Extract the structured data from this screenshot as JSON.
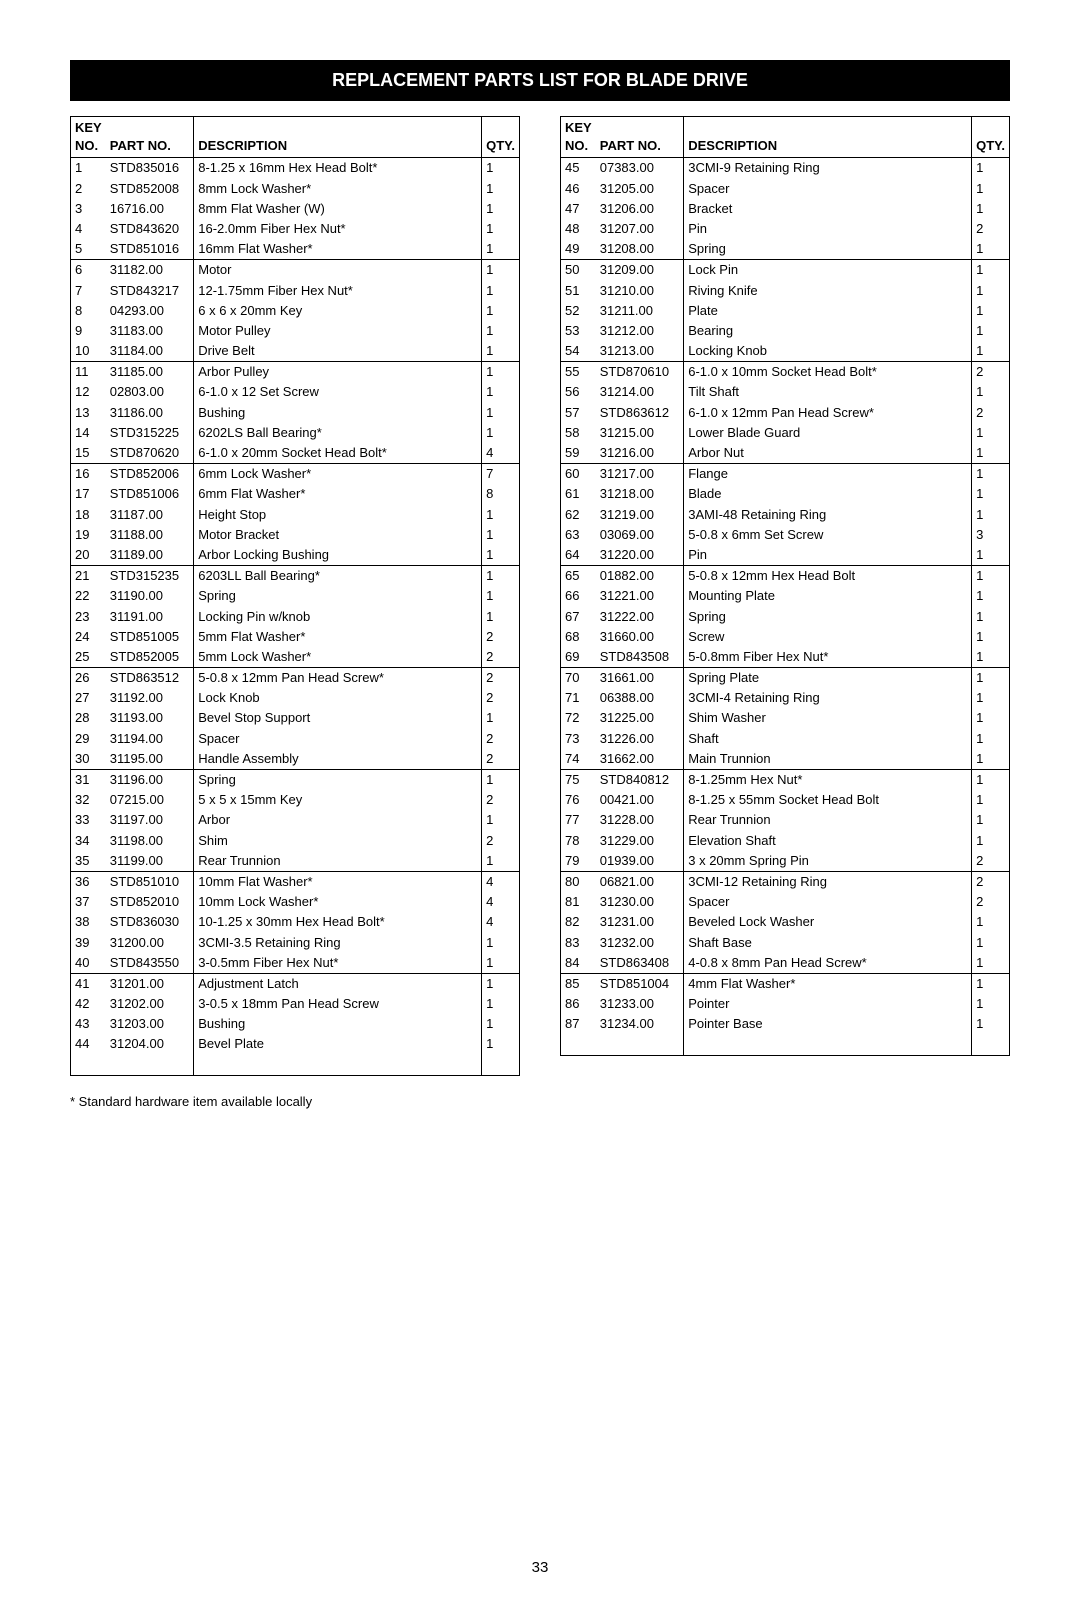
{
  "title": "REPLACEMENT PARTS LIST FOR BLADE DRIVE",
  "headers": {
    "key": "KEY",
    "no": "NO.",
    "part": "PART NO.",
    "desc": "DESCRIPTION",
    "qty": "QTY."
  },
  "footnote": "* Standard hardware item available locally",
  "pageNumber": "33",
  "groupBreakAfter": [
    5,
    10,
    15,
    20,
    25,
    30,
    35,
    40,
    44,
    49,
    54,
    59,
    64,
    69,
    74,
    79,
    84
  ],
  "leftTable": [
    {
      "no": "1",
      "part": "STD835016",
      "desc": "8-1.25 x 16mm Hex Head Bolt*",
      "qty": "1"
    },
    {
      "no": "2",
      "part": "STD852008",
      "desc": "8mm Lock Washer*",
      "qty": "1"
    },
    {
      "no": "3",
      "part": "16716.00",
      "desc": "8mm Flat Washer (W)",
      "qty": "1"
    },
    {
      "no": "4",
      "part": "STD843620",
      "desc": "16-2.0mm Fiber Hex Nut*",
      "qty": "1"
    },
    {
      "no": "5",
      "part": "STD851016",
      "desc": "16mm Flat Washer*",
      "qty": "1"
    },
    {
      "no": "6",
      "part": "31182.00",
      "desc": "Motor",
      "qty": "1"
    },
    {
      "no": "7",
      "part": "STD843217",
      "desc": "12-1.75mm Fiber Hex Nut*",
      "qty": "1"
    },
    {
      "no": "8",
      "part": "04293.00",
      "desc": "6 x 6 x 20mm Key",
      "qty": "1"
    },
    {
      "no": "9",
      "part": "31183.00",
      "desc": "Motor Pulley",
      "qty": "1"
    },
    {
      "no": "10",
      "part": "31184.00",
      "desc": "Drive Belt",
      "qty": "1"
    },
    {
      "no": "11",
      "part": "31185.00",
      "desc": "Arbor Pulley",
      "qty": "1"
    },
    {
      "no": "12",
      "part": "02803.00",
      "desc": "6-1.0 x 12 Set Screw",
      "qty": "1"
    },
    {
      "no": "13",
      "part": "31186.00",
      "desc": "Bushing",
      "qty": "1"
    },
    {
      "no": "14",
      "part": "STD315225",
      "desc": "6202LS Ball Bearing*",
      "qty": "1"
    },
    {
      "no": "15",
      "part": "STD870620",
      "desc": "6-1.0 x 20mm Socket Head Bolt*",
      "qty": "4"
    },
    {
      "no": "16",
      "part": "STD852006",
      "desc": "6mm Lock Washer*",
      "qty": "7"
    },
    {
      "no": "17",
      "part": "STD851006",
      "desc": "6mm Flat Washer*",
      "qty": "8"
    },
    {
      "no": "18",
      "part": "31187.00",
      "desc": "Height Stop",
      "qty": "1"
    },
    {
      "no": "19",
      "part": "31188.00",
      "desc": "Motor Bracket",
      "qty": "1"
    },
    {
      "no": "20",
      "part": "31189.00",
      "desc": "Arbor Locking Bushing",
      "qty": "1"
    },
    {
      "no": "21",
      "part": "STD315235",
      "desc": "6203LL Ball Bearing*",
      "qty": "1"
    },
    {
      "no": "22",
      "part": "31190.00",
      "desc": "Spring",
      "qty": "1"
    },
    {
      "no": "23",
      "part": "31191.00",
      "desc": "Locking Pin w/knob",
      "qty": "1"
    },
    {
      "no": "24",
      "part": "STD851005",
      "desc": "5mm Flat Washer*",
      "qty": "2"
    },
    {
      "no": "25",
      "part": "STD852005",
      "desc": "5mm Lock Washer*",
      "qty": "2"
    },
    {
      "no": "26",
      "part": "STD863512",
      "desc": "5-0.8 x 12mm Pan Head Screw*",
      "qty": "2"
    },
    {
      "no": "27",
      "part": "31192.00",
      "desc": "Lock Knob",
      "qty": "2"
    },
    {
      "no": "28",
      "part": "31193.00",
      "desc": "Bevel Stop Support",
      "qty": "1"
    },
    {
      "no": "29",
      "part": "31194.00",
      "desc": "Spacer",
      "qty": "2"
    },
    {
      "no": "30",
      "part": "31195.00",
      "desc": "Handle Assembly",
      "qty": "2"
    },
    {
      "no": "31",
      "part": "31196.00",
      "desc": "Spring",
      "qty": "1"
    },
    {
      "no": "32",
      "part": "07215.00",
      "desc": "5 x 5 x 15mm Key",
      "qty": "2"
    },
    {
      "no": "33",
      "part": "31197.00",
      "desc": "Arbor",
      "qty": "1"
    },
    {
      "no": "34",
      "part": "31198.00",
      "desc": "Shim",
      "qty": "2"
    },
    {
      "no": "35",
      "part": "31199.00",
      "desc": "Rear Trunnion",
      "qty": "1"
    },
    {
      "no": "36",
      "part": "STD851010",
      "desc": "10mm Flat Washer*",
      "qty": "4"
    },
    {
      "no": "37",
      "part": "STD852010",
      "desc": "10mm Lock Washer*",
      "qty": "4"
    },
    {
      "no": "38",
      "part": "STD836030",
      "desc": "10-1.25 x 30mm Hex Head Bolt*",
      "qty": "4"
    },
    {
      "no": "39",
      "part": "31200.00",
      "desc": "3CMI-3.5 Retaining Ring",
      "qty": "1"
    },
    {
      "no": "40",
      "part": "STD843550",
      "desc": "3-0.5mm Fiber Hex Nut*",
      "qty": "1"
    },
    {
      "no": "41",
      "part": "31201.00",
      "desc": "Adjustment Latch",
      "qty": "1"
    },
    {
      "no": "42",
      "part": "31202.00",
      "desc": "3-0.5 x 18mm Pan Head Screw",
      "qty": "1"
    },
    {
      "no": "43",
      "part": "31203.00",
      "desc": "Bushing",
      "qty": "1"
    },
    {
      "no": "44",
      "part": "31204.00",
      "desc": "Bevel Plate",
      "qty": "1"
    }
  ],
  "rightTable": [
    {
      "no": "45",
      "part": "07383.00",
      "desc": "3CMI-9 Retaining Ring",
      "qty": "1"
    },
    {
      "no": "46",
      "part": "31205.00",
      "desc": "Spacer",
      "qty": "1"
    },
    {
      "no": "47",
      "part": "31206.00",
      "desc": "Bracket",
      "qty": "1"
    },
    {
      "no": "48",
      "part": "31207.00",
      "desc": "Pin",
      "qty": "2"
    },
    {
      "no": "49",
      "part": "31208.00",
      "desc": "Spring",
      "qty": "1"
    },
    {
      "no": "50",
      "part": "31209.00",
      "desc": "Lock Pin",
      "qty": "1"
    },
    {
      "no": "51",
      "part": "31210.00",
      "desc": "Riving Knife",
      "qty": "1"
    },
    {
      "no": "52",
      "part": "31211.00",
      "desc": "Plate",
      "qty": "1"
    },
    {
      "no": "53",
      "part": "31212.00",
      "desc": "Bearing",
      "qty": "1"
    },
    {
      "no": "54",
      "part": "31213.00",
      "desc": "Locking Knob",
      "qty": "1"
    },
    {
      "no": "55",
      "part": "STD870610",
      "desc": "6-1.0 x 10mm Socket Head Bolt*",
      "qty": "2"
    },
    {
      "no": "56",
      "part": "31214.00",
      "desc": "Tilt Shaft",
      "qty": "1"
    },
    {
      "no": "57",
      "part": "STD863612",
      "desc": "6-1.0 x 12mm Pan Head Screw*",
      "qty": "2"
    },
    {
      "no": "58",
      "part": "31215.00",
      "desc": "Lower Blade Guard",
      "qty": "1"
    },
    {
      "no": "59",
      "part": "31216.00",
      "desc": "Arbor Nut",
      "qty": "1"
    },
    {
      "no": "60",
      "part": "31217.00",
      "desc": "Flange",
      "qty": "1"
    },
    {
      "no": "61",
      "part": "31218.00",
      "desc": "Blade",
      "qty": "1"
    },
    {
      "no": "62",
      "part": "31219.00",
      "desc": "3AMI-48 Retaining Ring",
      "qty": "1"
    },
    {
      "no": "63",
      "part": "03069.00",
      "desc": "5-0.8 x 6mm Set Screw",
      "qty": "3"
    },
    {
      "no": "64",
      "part": "31220.00",
      "desc": "Pin",
      "qty": "1"
    },
    {
      "no": "65",
      "part": "01882.00",
      "desc": "5-0.8 x 12mm Hex Head Bolt",
      "qty": "1"
    },
    {
      "no": "66",
      "part": "31221.00",
      "desc": "Mounting Plate",
      "qty": "1"
    },
    {
      "no": "67",
      "part": "31222.00",
      "desc": "Spring",
      "qty": "1"
    },
    {
      "no": "68",
      "part": "31660.00",
      "desc": "Screw",
      "qty": "1"
    },
    {
      "no": "69",
      "part": "STD843508",
      "desc": "5-0.8mm Fiber Hex Nut*",
      "qty": "1"
    },
    {
      "no": "70",
      "part": "31661.00",
      "desc": "Spring Plate",
      "qty": "1"
    },
    {
      "no": "71",
      "part": "06388.00",
      "desc": "3CMI-4 Retaining Ring",
      "qty": "1"
    },
    {
      "no": "72",
      "part": "31225.00",
      "desc": "Shim Washer",
      "qty": "1"
    },
    {
      "no": "73",
      "part": "31226.00",
      "desc": "Shaft",
      "qty": "1"
    },
    {
      "no": "74",
      "part": "31662.00",
      "desc": "Main Trunnion",
      "qty": "1"
    },
    {
      "no": "75",
      "part": "STD840812",
      "desc": "8-1.25mm Hex Nut*",
      "qty": "1"
    },
    {
      "no": "76",
      "part": "00421.00",
      "desc": "8-1.25 x 55mm Socket Head Bolt",
      "qty": "1"
    },
    {
      "no": "77",
      "part": "31228.00",
      "desc": "Rear Trunnion",
      "qty": "1"
    },
    {
      "no": "78",
      "part": "31229.00",
      "desc": "Elevation Shaft",
      "qty": "1"
    },
    {
      "no": "79",
      "part": "01939.00",
      "desc": "3 x 20mm Spring Pin",
      "qty": "2"
    },
    {
      "no": "80",
      "part": "06821.00",
      "desc": "3CMI-12 Retaining Ring",
      "qty": "2"
    },
    {
      "no": "81",
      "part": "31230.00",
      "desc": "Spacer",
      "qty": "2"
    },
    {
      "no": "82",
      "part": "31231.00",
      "desc": "Beveled Lock Washer",
      "qty": "1"
    },
    {
      "no": "83",
      "part": "31232.00",
      "desc": "Shaft Base",
      "qty": "1"
    },
    {
      "no": "84",
      "part": "STD863408",
      "desc": "4-0.8 x 8mm Pan Head Screw*",
      "qty": "1"
    },
    {
      "no": "85",
      "part": "STD851004",
      "desc": "4mm Flat Washer*",
      "qty": "1"
    },
    {
      "no": "86",
      "part": "31233.00",
      "desc": "Pointer",
      "qty": "1"
    },
    {
      "no": "87",
      "part": "31234.00",
      "desc": "Pointer Base",
      "qty": "1"
    }
  ]
}
